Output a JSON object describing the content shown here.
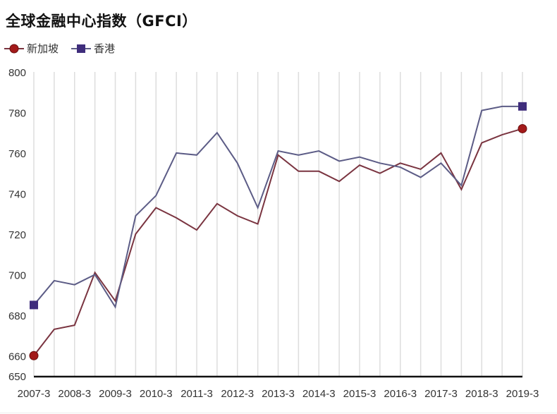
{
  "title": "全球金融中心指数（GFCI）",
  "legend": [
    {
      "label": "新加坡",
      "marker": "circle",
      "color": "#9b1c1c"
    },
    {
      "label": "香港",
      "marker": "square",
      "color": "#3f2d7c"
    }
  ],
  "colors": {
    "singapore_line": "#7a3440",
    "hongkong_line": "#5c5c86",
    "singapore_marker": "#a31a1a",
    "hongkong_marker": "#3f2d7c",
    "grid": "#dddddd",
    "axis": "#111111"
  },
  "chart_data": {
    "type": "line",
    "title": "全球金融中心指数（GFCI）",
    "xlabel": "",
    "ylabel": "",
    "ylim": [
      650,
      800
    ],
    "yticks": [
      650,
      660,
      680,
      700,
      720,
      740,
      760,
      780,
      800
    ],
    "grid": {
      "vertical": true,
      "horizontal": false
    },
    "legend_position": "top-left",
    "x": [
      "2007-3",
      "2007-9",
      "2008-3",
      "2008-9",
      "2009-3",
      "2009-9",
      "2010-3",
      "2010-9",
      "2011-3",
      "2011-9",
      "2012-3",
      "2012-9",
      "2013-3",
      "2013-9",
      "2014-3",
      "2014-9",
      "2015-3",
      "2015-9",
      "2016-3",
      "2016-9",
      "2017-3",
      "2017-9",
      "2018-3",
      "2018-9",
      "2019-3"
    ],
    "xtick_labels": [
      "2007-3",
      "2008-3",
      "2009-3",
      "2010-3",
      "2011-3",
      "2012-3",
      "2013-3",
      "2014-3",
      "2015-3",
      "2016-3",
      "2017-3",
      "2018-3",
      "2019-3"
    ],
    "series": [
      {
        "name": "新加坡",
        "values": [
          660,
          673,
          675,
          701,
          687,
          720,
          733,
          728,
          722,
          735,
          729,
          725,
          759,
          751,
          751,
          746,
          754,
          750,
          755,
          752,
          760,
          742,
          765,
          769,
          772
        ]
      },
      {
        "name": "香港",
        "values": [
          685,
          697,
          695,
          700,
          684,
          729,
          739,
          760,
          759,
          770,
          755,
          733,
          761,
          759,
          761,
          756,
          758,
          755,
          753,
          748,
          755,
          744,
          781,
          783,
          783
        ]
      }
    ]
  }
}
